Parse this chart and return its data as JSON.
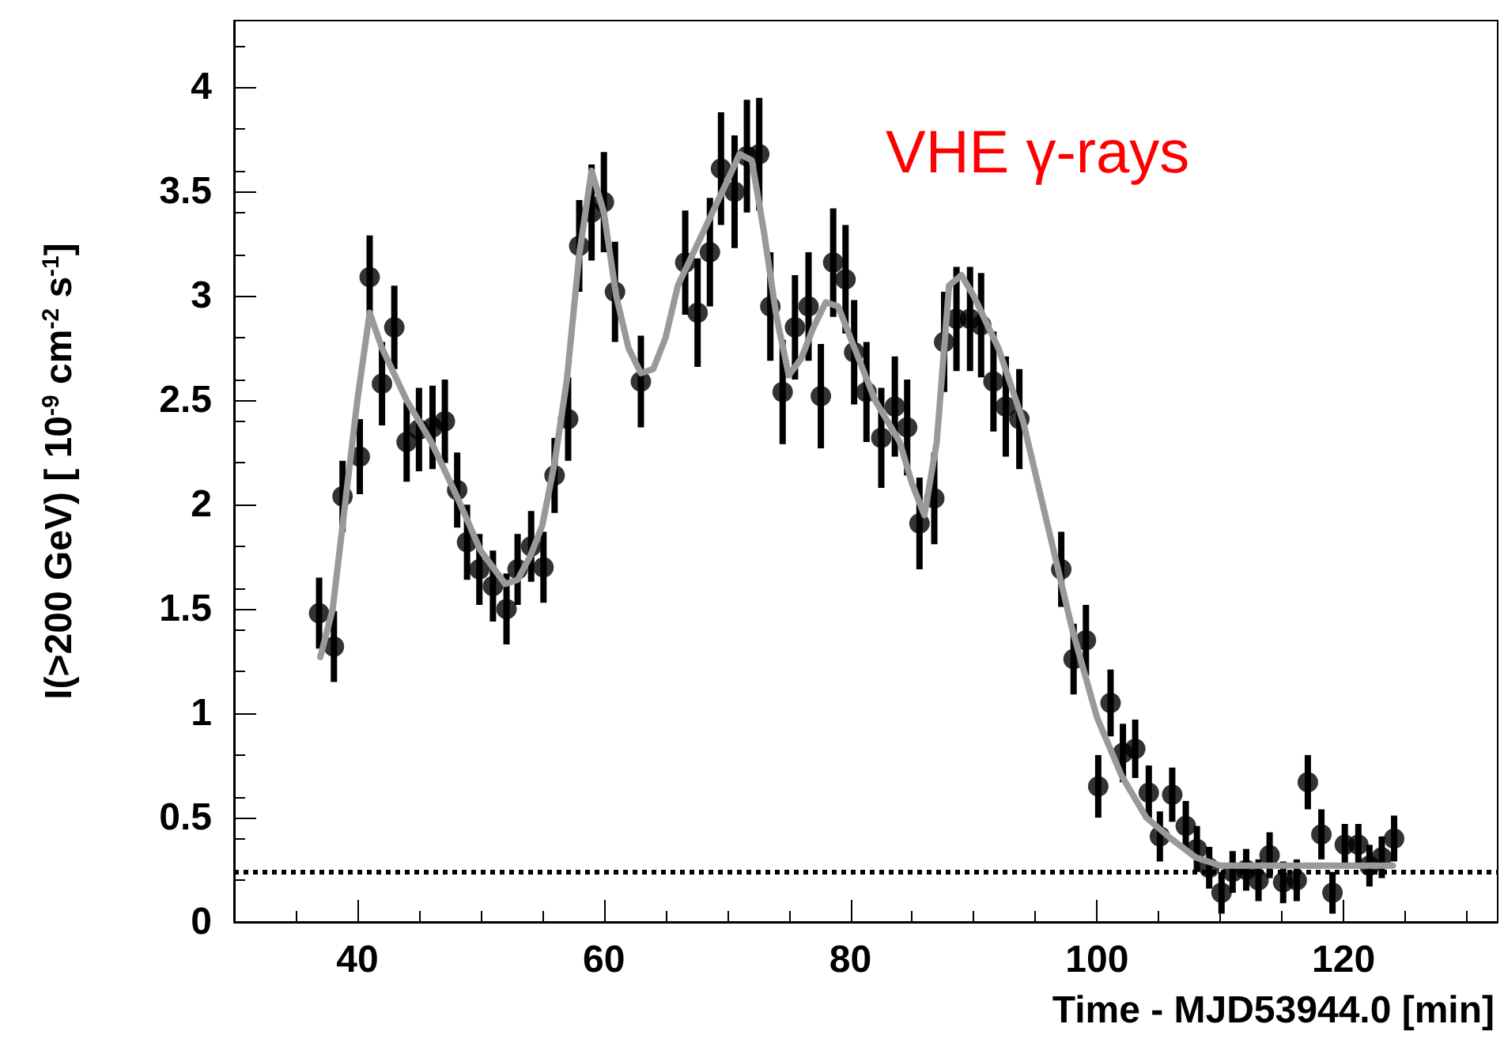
{
  "chart_data": {
    "type": "scatter",
    "xlabel": "Time - MJD53944.0 [min]",
    "ylabel": "I(>200 GeV) [ 10$^{-9}$ cm$^{-2}$ s$^{-1}$]",
    "annotations": [
      "VHE γ-rays"
    ],
    "xlim": [
      30,
      132.5
    ],
    "xticks": [
      40,
      60,
      80,
      100,
      120
    ],
    "ylim": [
      0,
      4.32
    ],
    "yticks": [
      0,
      0.5,
      1,
      1.5,
      2,
      2.5,
      3,
      3.5,
      4
    ],
    "grid": false,
    "marker": "circle",
    "ref_lines": [
      {
        "axis": "y",
        "value": 0.24,
        "color": "#000000",
        "line_style": "dotted"
      }
    ],
    "series": [
      {
        "color": "#000000",
        "x": [
          36.9,
          38.1,
          38.8,
          40.2,
          41.0,
          42.0,
          43.0,
          44.0,
          45.0,
          46.1,
          47.1,
          48.1,
          48.9,
          49.9,
          51.0,
          52.1,
          53.0,
          54.1,
          55.1,
          56.0,
          57.1,
          58.0,
          59.0,
          60.0,
          60.9,
          63.0,
          66.6,
          67.6,
          68.6,
          69.5,
          70.6,
          71.6,
          72.6,
          73.5,
          74.5,
          75.5,
          76.6,
          77.6,
          78.6,
          79.6,
          80.3,
          81.3,
          82.5,
          83.6,
          84.6,
          85.6,
          86.8,
          87.6,
          88.6,
          89.7,
          90.6,
          91.6,
          92.6,
          93.7,
          97.1,
          98.1,
          99.1,
          100.1,
          101.1,
          102.1,
          103.1,
          104.2,
          105.1,
          106.1,
          107.2,
          108.1,
          109.1,
          110.1,
          111.0,
          112.1,
          113.1,
          114.0,
          115.1,
          116.2,
          117.1,
          118.2,
          119.1,
          120.1,
          121.2,
          122.1,
          123.1,
          124.1
        ],
        "values": [
          1.48,
          1.32,
          2.04,
          2.23,
          3.09,
          2.58,
          2.85,
          2.3,
          2.36,
          2.37,
          2.4,
          2.07,
          1.82,
          1.69,
          1.61,
          1.5,
          1.69,
          1.8,
          1.7,
          2.14,
          2.41,
          3.24,
          3.4,
          3.45,
          3.02,
          2.59,
          3.16,
          2.92,
          3.21,
          3.61,
          3.5,
          3.67,
          3.68,
          2.95,
          2.54,
          2.85,
          2.95,
          2.52,
          3.16,
          3.08,
          2.73,
          2.54,
          2.32,
          2.47,
          2.37,
          1.91,
          2.03,
          2.78,
          2.89,
          2.89,
          2.86,
          2.59,
          2.47,
          2.41,
          1.69,
          1.26,
          1.35,
          0.65,
          1.05,
          0.81,
          0.83,
          0.62,
          0.41,
          0.61,
          0.46,
          0.35,
          0.26,
          0.14,
          0.24,
          0.25,
          0.2,
          0.32,
          0.19,
          0.2,
          0.67,
          0.42,
          0.14,
          0.37,
          0.37,
          0.27,
          0.31,
          0.4
        ],
        "errors": [
          0.17,
          0.17,
          0.17,
          0.18,
          0.2,
          0.2,
          0.2,
          0.19,
          0.2,
          0.2,
          0.2,
          0.18,
          0.18,
          0.17,
          0.17,
          0.17,
          0.17,
          0.17,
          0.17,
          0.18,
          0.2,
          0.22,
          0.23,
          0.24,
          0.24,
          0.22,
          0.25,
          0.26,
          0.26,
          0.27,
          0.27,
          0.27,
          0.27,
          0.26,
          0.25,
          0.25,
          0.26,
          0.25,
          0.26,
          0.26,
          0.25,
          0.24,
          0.24,
          0.24,
          0.23,
          0.22,
          0.22,
          0.24,
          0.25,
          0.25,
          0.25,
          0.24,
          0.24,
          0.24,
          0.18,
          0.17,
          0.17,
          0.15,
          0.16,
          0.14,
          0.14,
          0.13,
          0.12,
          0.13,
          0.12,
          0.11,
          0.1,
          0.1,
          0.1,
          0.1,
          0.1,
          0.11,
          0.1,
          0.1,
          0.13,
          0.12,
          0.1,
          0.1,
          0.1,
          0.1,
          0.1,
          0.11
        ]
      },
      {
        "type": "line",
        "color": "#999999",
        "marker": "none",
        "x": [
          37,
          38,
          39,
          40,
          41,
          42,
          44,
          46,
          48,
          50,
          52,
          53,
          54,
          55,
          56,
          57,
          58,
          59,
          60,
          61,
          62,
          63,
          64,
          65,
          66,
          68,
          70,
          71,
          72,
          73,
          74,
          75,
          76,
          77,
          78,
          79,
          80,
          82,
          84,
          85,
          86,
          87,
          88,
          89,
          90,
          92,
          94,
          96,
          98,
          100,
          102,
          104,
          106,
          108,
          110,
          112,
          116,
          120,
          124
        ],
        "values": [
          1.27,
          1.5,
          2.0,
          2.5,
          2.92,
          2.75,
          2.5,
          2.3,
          2.05,
          1.78,
          1.62,
          1.64,
          1.75,
          1.9,
          2.2,
          2.6,
          3.2,
          3.6,
          3.4,
          3.0,
          2.75,
          2.63,
          2.65,
          2.8,
          3.05,
          3.3,
          3.55,
          3.68,
          3.65,
          3.3,
          2.9,
          2.62,
          2.7,
          2.85,
          2.97,
          2.95,
          2.8,
          2.5,
          2.3,
          2.1,
          1.95,
          2.3,
          3.05,
          3.1,
          3.0,
          2.75,
          2.4,
          1.9,
          1.4,
          0.98,
          0.7,
          0.5,
          0.4,
          0.31,
          0.27,
          0.27,
          0.27,
          0.27,
          0.27
        ]
      }
    ]
  }
}
